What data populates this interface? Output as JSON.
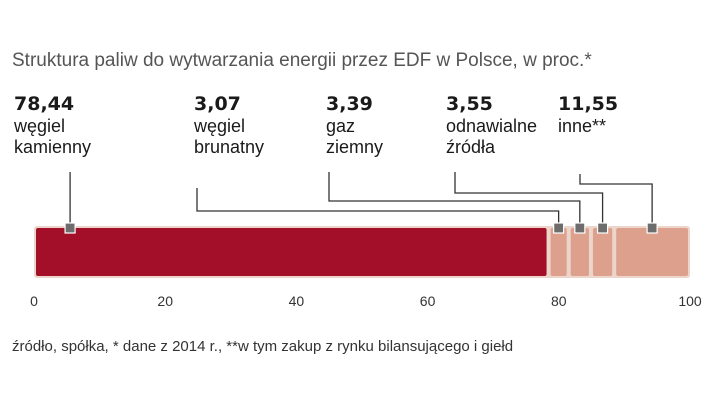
{
  "chart_data": {
    "type": "bar",
    "orientation": "horizontal-stacked",
    "title": "Struktura paliw do wytwarzania energii przez EDF w Polsce, w proc.*",
    "series": [
      {
        "name": "węgiel kamienny",
        "value_label": "78,44",
        "value": 78.44,
        "label_lines": [
          "węgiel",
          "kamienny"
        ],
        "color": "#a30f28"
      },
      {
        "name": "węgiel brunatny",
        "value_label": "3,07",
        "value": 3.07,
        "label_lines": [
          "węgiel",
          "brunatny"
        ],
        "color": "#dca08c"
      },
      {
        "name": "gaz ziemny",
        "value_label": "3,39",
        "value": 3.39,
        "label_lines": [
          "gaz",
          "ziemny"
        ],
        "color": "#dca08c"
      },
      {
        "name": "odnawialne źródła",
        "value_label": "3,55",
        "value": 3.55,
        "label_lines": [
          "odnawialne",
          "źródła"
        ],
        "color": "#dca08c"
      },
      {
        "name": "inne**",
        "value_label": "11,55",
        "value": 11.55,
        "label_lines": [
          "inne**"
        ],
        "color": "#dca08c"
      }
    ],
    "xlim": [
      0,
      100
    ],
    "ticks": [
      0,
      20,
      40,
      60,
      80,
      100
    ],
    "tick_labels": [
      "0",
      "20",
      "40",
      "60",
      "80",
      "100"
    ],
    "grid": false,
    "footnote": "źródło, spółka, * dane z 2014 r., **w tym zakup z rynku bilansującego i giełd"
  }
}
